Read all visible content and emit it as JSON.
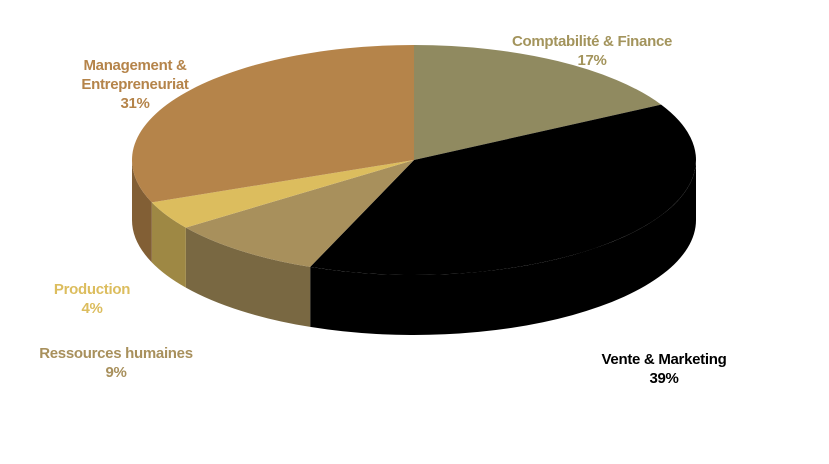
{
  "chart_data": {
    "type": "pie",
    "categories": [
      "Comptabilité & Finance",
      "Vente & Marketing",
      "Ressources humaines",
      "Production",
      "Management & Entrepreneuriat"
    ],
    "values": [
      17,
      39,
      9,
      4,
      31
    ],
    "value_labels": [
      "17%",
      "39%",
      "9%",
      "4%",
      "31%"
    ],
    "colors": [
      "#908a60",
      "#000000",
      "#a8905c",
      "#dcbd5e",
      "#b5844a"
    ],
    "label_colors": [
      "#a3945c",
      "#000000",
      "#a8905c",
      "#dcbd5e",
      "#b5844a"
    ]
  }
}
